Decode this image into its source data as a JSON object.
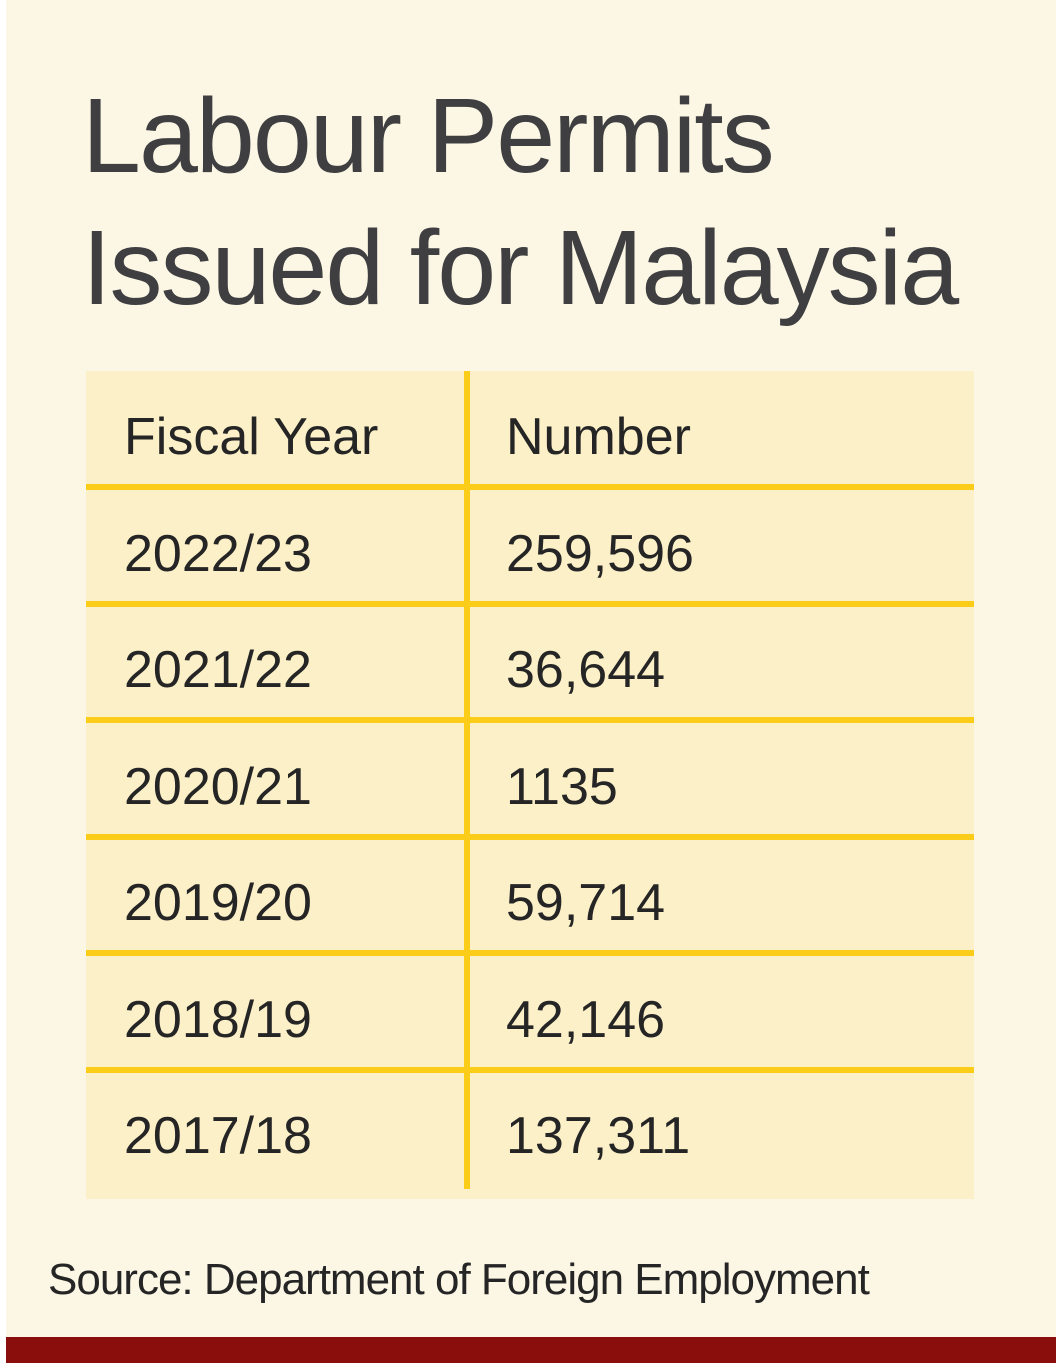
{
  "title_lines": [
    "Labour Permits",
    "Issued for Malaysia"
  ],
  "source": "Source: Department of Foreign Employment",
  "colors": {
    "background": "#fcf7e5",
    "table_fill": "#fcf0c8",
    "rule": "#fbcc18",
    "footer_bar": "#8a0f0c",
    "title_text": "#3f3f41"
  },
  "chart_data": {
    "type": "table",
    "title": "Labour Permits Issued for Malaysia",
    "columns": [
      "Fiscal Year",
      "Number"
    ],
    "rows": [
      [
        "2022/23",
        "259,596"
      ],
      [
        "2021/22",
        "36,644"
      ],
      [
        "2020/21",
        "1135"
      ],
      [
        "2019/20",
        "59,714"
      ],
      [
        "2018/19",
        "42,146"
      ],
      [
        "2017/18",
        "137,311"
      ]
    ]
  }
}
